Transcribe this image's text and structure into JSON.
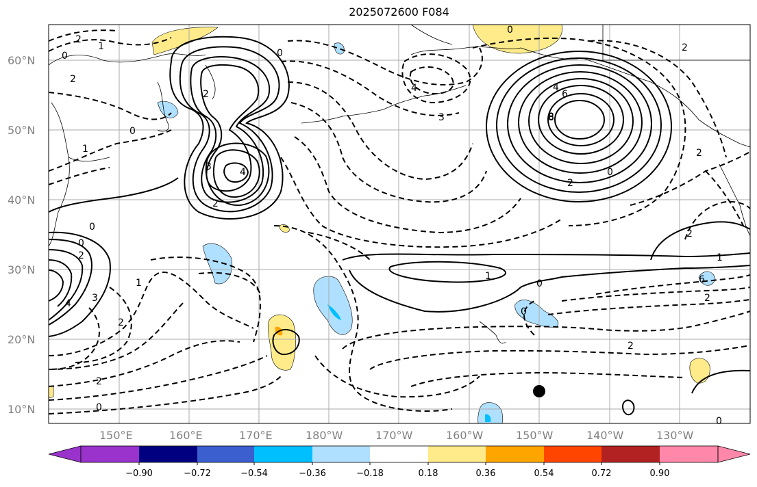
{
  "title": "2025072600 F084",
  "map": {
    "lat_labels": [
      "60°N",
      "50°N",
      "40°N",
      "30°N",
      "20°N",
      "10°N"
    ],
    "lon_labels": [
      "150°E",
      "160°E",
      "170°E",
      "180°W",
      "170°W",
      "160°W",
      "150°W",
      "140°W",
      "130°W"
    ],
    "contour_labels": [
      "0",
      "2",
      "1",
      "2",
      "0",
      "4",
      "6",
      "8",
      "2",
      "3",
      "4",
      "2",
      "2",
      "1",
      "0",
      "2",
      "1",
      "4",
      "3",
      "2",
      "0",
      "0",
      "1",
      "0",
      "2",
      "0",
      "1",
      "2",
      "2",
      "2",
      "0",
      "2",
      "2",
      "0",
      "4",
      "0",
      "8",
      "3",
      "6",
      "0"
    ]
  },
  "colorbar": {
    "ticks": [
      "−0.90",
      "−0.72",
      "−0.54",
      "−0.36",
      "−0.18",
      "0.18",
      "0.36",
      "0.54",
      "0.72",
      "0.90"
    ],
    "colors": [
      "#9933cc",
      "#000080",
      "#3b5fcf",
      "#00bfff",
      "#b0e0ff",
      "#ffffff",
      "#ffeb8a",
      "#ffa500",
      "#ff4500",
      "#b22222",
      "#ff88aa"
    ]
  }
}
